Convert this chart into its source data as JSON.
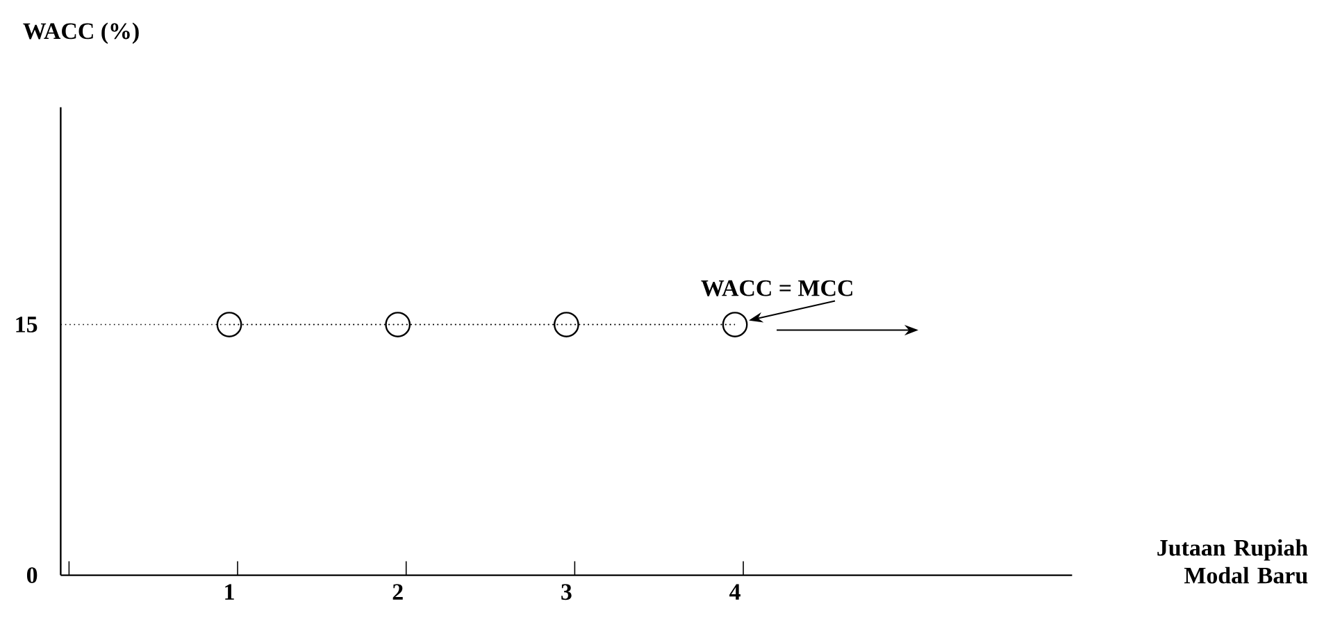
{
  "chart_data": {
    "type": "line",
    "xlabel": "Jutaan Rupiah Modal Baru",
    "ylabel": "WACC (%)",
    "series": [
      {
        "x": [
          1,
          2,
          3,
          4
        ],
        "values": [
          15,
          15,
          15,
          15
        ],
        "color": "#000000",
        "marker": "circle",
        "line_style": "dotted"
      }
    ],
    "annotations": [
      {
        "text": "WACC = MCC",
        "x": 4,
        "y": 15
      }
    ],
    "ref_lines": [
      {
        "axis": "y",
        "value": 15,
        "color": "#000000",
        "line_style": "dotted"
      }
    ],
    "xlim": [
      0,
      6
    ],
    "xticks": [
      {
        "value": 0,
        "label": null
      },
      {
        "value": 1,
        "label": "1"
      },
      {
        "value": 2,
        "label": "2"
      },
      {
        "value": 3,
        "label": "3"
      },
      {
        "value": 4,
        "label": "4"
      }
    ],
    "ylim": [
      0,
      28
    ],
    "yticks": [
      {
        "value": 0,
        "label": "0"
      },
      {
        "value": 15,
        "label": "15"
      }
    ],
    "grid": false
  }
}
